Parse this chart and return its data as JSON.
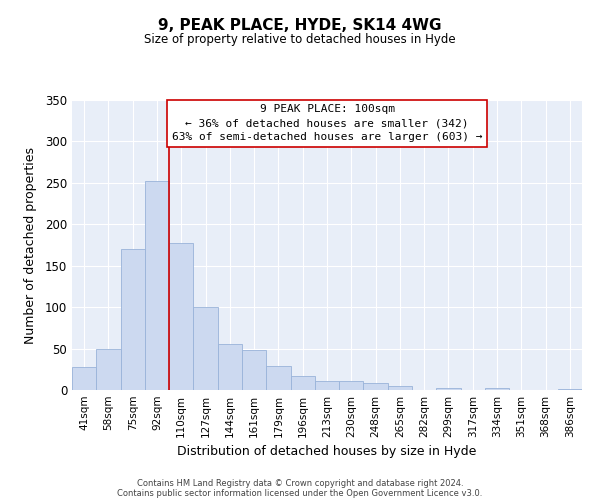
{
  "title": "9, PEAK PLACE, HYDE, SK14 4WG",
  "subtitle": "Size of property relative to detached houses in Hyde",
  "xlabel": "Distribution of detached houses by size in Hyde",
  "ylabel": "Number of detached properties",
  "bar_color": "#ccd9f0",
  "bar_edge_color": "#99b3d9",
  "categories": [
    "41sqm",
    "58sqm",
    "75sqm",
    "92sqm",
    "110sqm",
    "127sqm",
    "144sqm",
    "161sqm",
    "179sqm",
    "196sqm",
    "213sqm",
    "230sqm",
    "248sqm",
    "265sqm",
    "282sqm",
    "299sqm",
    "317sqm",
    "334sqm",
    "351sqm",
    "368sqm",
    "386sqm"
  ],
  "values": [
    28,
    50,
    170,
    252,
    178,
    100,
    55,
    48,
    29,
    17,
    11,
    11,
    8,
    5,
    0,
    2,
    0,
    3,
    0,
    0,
    1
  ],
  "ylim": [
    0,
    350
  ],
  "yticks": [
    0,
    50,
    100,
    150,
    200,
    250,
    300,
    350
  ],
  "vline_x": 3.5,
  "vline_color": "#cc0000",
  "annotation_title": "9 PEAK PLACE: 100sqm",
  "annotation_line1": "← 36% of detached houses are smaller (342)",
  "annotation_line2": "63% of semi-detached houses are larger (603) →",
  "footer1": "Contains HM Land Registry data © Crown copyright and database right 2024.",
  "footer2": "Contains public sector information licensed under the Open Government Licence v3.0.",
  "bg_color": "#e8eef8"
}
